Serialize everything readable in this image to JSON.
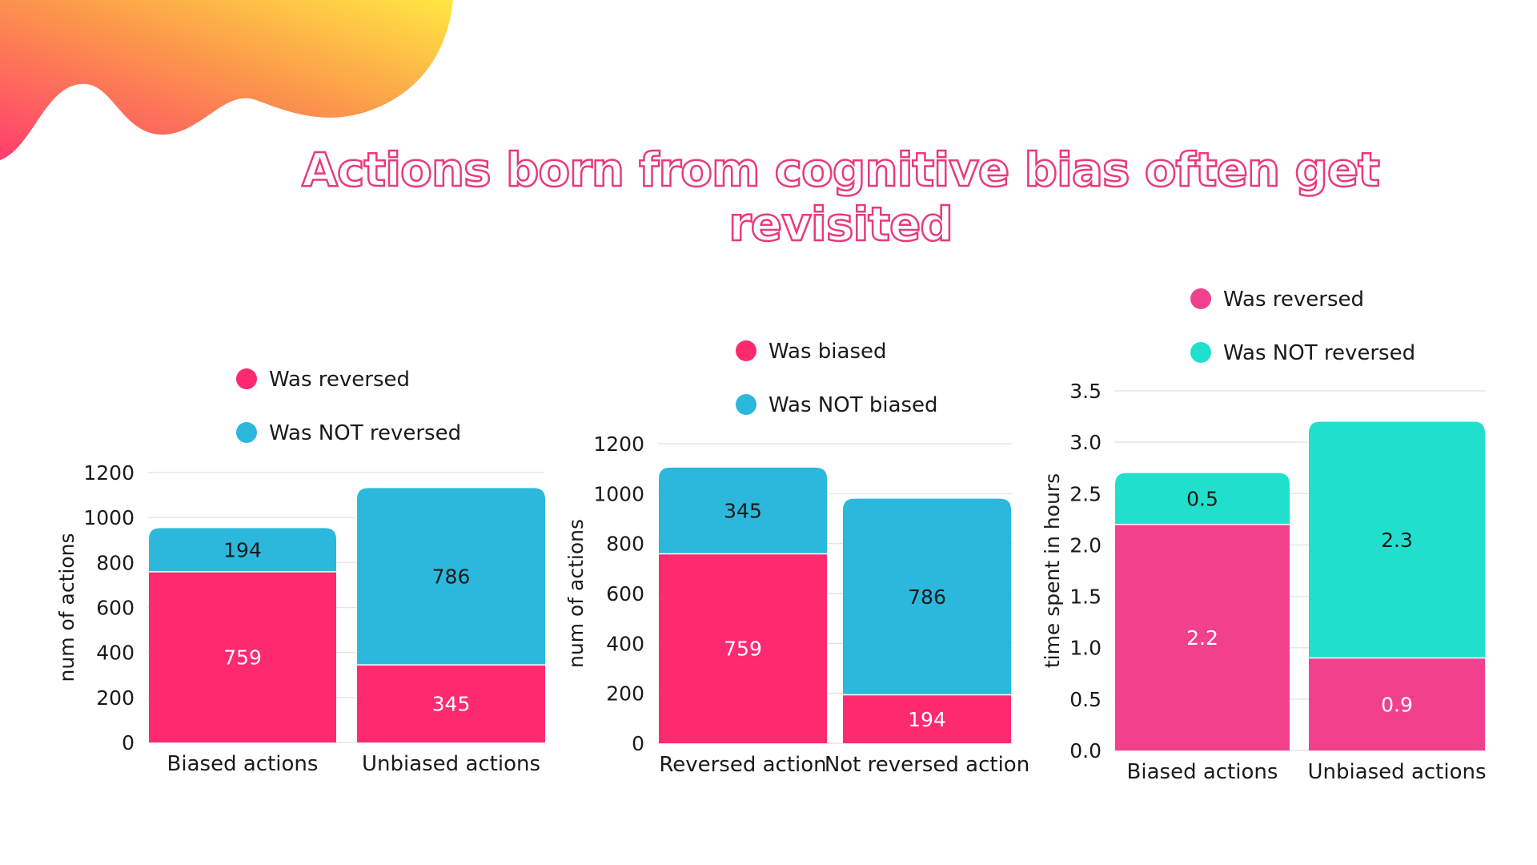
{
  "slide": {
    "title": "Actions born from cognitive bias often get revisited"
  },
  "colors": {
    "pink": "#fe2a70",
    "blue": "#2bb8dc",
    "pink_soft": "#f1418c",
    "teal": "#20e0cd",
    "title_outline": "#e83a7a"
  },
  "chart_data": [
    {
      "type": "bar",
      "stacked": true,
      "title": "",
      "xlabel": "",
      "ylabel": "num of actions",
      "ylim": [
        0,
        1200
      ],
      "yticks": [
        "0",
        "200",
        "400",
        "600",
        "800",
        "1000",
        "1200"
      ],
      "categories": [
        "Biased actions",
        "Unbiased actions"
      ],
      "series": [
        {
          "name": "Was reversed",
          "values": [
            759,
            345
          ],
          "color": "#fe2a70",
          "label_color": "#ffffff",
          "labels": [
            "759",
            "345"
          ]
        },
        {
          "name": "Was NOT reversed",
          "values": [
            194,
            786
          ],
          "color": "#2bb8dc",
          "label_color": "#1a1a1a",
          "labels": [
            "194",
            "786"
          ]
        }
      ],
      "legend": "top"
    },
    {
      "type": "bar",
      "stacked": true,
      "title": "",
      "xlabel": "",
      "ylabel": "num of actions",
      "ylim": [
        0,
        1200
      ],
      "yticks": [
        "0",
        "200",
        "400",
        "600",
        "800",
        "1000",
        "1200"
      ],
      "categories": [
        "Reversed action",
        "Not reversed action"
      ],
      "series": [
        {
          "name": "Was biased",
          "values": [
            759,
            194
          ],
          "color": "#fe2a70",
          "label_color": "#ffffff",
          "labels": [
            "759",
            "194"
          ]
        },
        {
          "name": "Was NOT biased",
          "values": [
            345,
            786
          ],
          "color": "#2bb8dc",
          "label_color": "#1a1a1a",
          "labels": [
            "345",
            "786"
          ]
        }
      ],
      "legend": "top"
    },
    {
      "type": "bar",
      "stacked": true,
      "title": "",
      "xlabel": "",
      "ylabel": "time spent in hours",
      "ylim": [
        0,
        3.5
      ],
      "yticks": [
        "0.0",
        "0.5",
        "1.0",
        "1.5",
        "2.0",
        "2.5",
        "3.0",
        "3.5"
      ],
      "categories": [
        "Biased actions",
        "Unbiased actions"
      ],
      "series": [
        {
          "name": "Was reversed",
          "values": [
            2.2,
            0.9
          ],
          "color": "#f1418c",
          "label_color": "#ffffff",
          "labels": [
            "2.2",
            "0.9"
          ]
        },
        {
          "name": "Was NOT reversed",
          "values": [
            0.5,
            2.3
          ],
          "color": "#20e0cd",
          "label_color": "#1a1a1a",
          "labels": [
            "0.5",
            "2.3"
          ]
        }
      ],
      "legend": "top"
    }
  ]
}
